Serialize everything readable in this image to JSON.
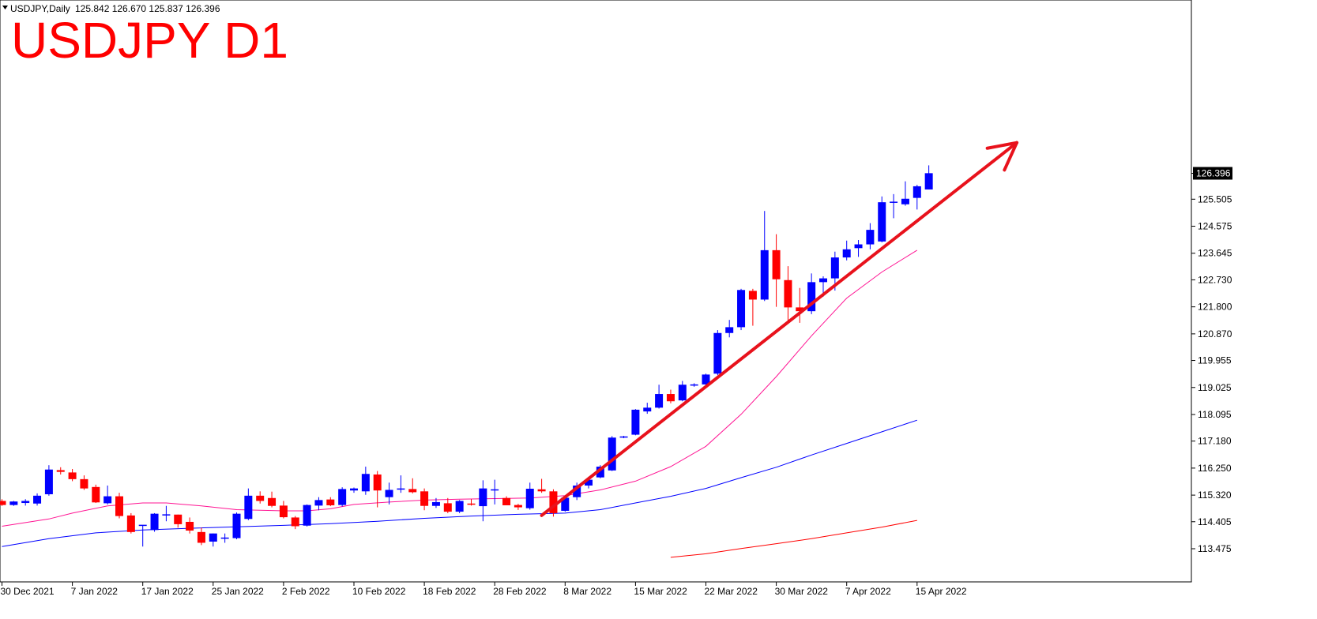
{
  "header": {
    "symbol_text": "USDJPY,Daily",
    "ohlc_text": "125.842 126.670 125.837 126.396"
  },
  "overlay_title": "USDJPY D1",
  "price_label": "126.396",
  "colors": {
    "bull": "#0000ff",
    "bear": "#ff0000",
    "ma_fast": "#ff1493",
    "ma_mid": "#0000ff",
    "ma_slow": "#ff0000",
    "arrow": "#e8121c",
    "title": "#ff0000",
    "axis": "#000000",
    "price_label_bg": "#000000",
    "price_label_fg": "#ffffff"
  },
  "chart_data": {
    "type": "candlestick",
    "instrument": "USDJPY",
    "timeframe": "Daily",
    "y_axis_ticks": [
      113.475,
      114.405,
      115.32,
      116.25,
      117.18,
      118.095,
      119.025,
      119.955,
      120.87,
      121.8,
      122.73,
      123.645,
      124.575,
      125.505,
      126.396
    ],
    "y_axis_labels": [
      "113.475",
      "114.405",
      "115.320",
      "116.250",
      "117.180",
      "118.095",
      "119.025",
      "119.955",
      "120.870",
      "121.800",
      "122.730",
      "123.645",
      "124.575",
      "125.505",
      "126.396"
    ],
    "x_axis_labels": [
      {
        "label": "30 Dec 2021",
        "index": 0
      },
      {
        "label": "7 Jan 2022",
        "index": 6
      },
      {
        "label": "17 Jan 2022",
        "index": 12
      },
      {
        "label": "25 Jan 2022",
        "index": 18
      },
      {
        "label": "2 Feb 2022",
        "index": 24
      },
      {
        "label": "10 Feb 2022",
        "index": 30
      },
      {
        "label": "18 Feb 2022",
        "index": 36
      },
      {
        "label": "28 Feb 2022",
        "index": 42
      },
      {
        "label": "8 Mar 2022",
        "index": 48
      },
      {
        "label": "15 Mar 2022",
        "index": 54
      },
      {
        "label": "22 Mar 2022",
        "index": 60
      },
      {
        "label": "30 Mar 2022",
        "index": 66
      },
      {
        "label": "7 Apr 2022",
        "index": 72
      },
      {
        "label": "15 Apr 2022",
        "index": 78
      }
    ],
    "candles": [
      {
        "o": 115.12,
        "h": 115.18,
        "l": 114.95,
        "c": 114.98
      },
      {
        "o": 114.98,
        "h": 115.12,
        "l": 114.95,
        "c": 115.1
      },
      {
        "o": 115.05,
        "h": 115.18,
        "l": 114.96,
        "c": 115.12
      },
      {
        "o": 115.03,
        "h": 115.38,
        "l": 114.96,
        "c": 115.3
      },
      {
        "o": 115.35,
        "h": 116.35,
        "l": 115.3,
        "c": 116.2
      },
      {
        "o": 116.18,
        "h": 116.28,
        "l": 116.03,
        "c": 116.12
      },
      {
        "o": 116.1,
        "h": 116.22,
        "l": 115.8,
        "c": 115.87
      },
      {
        "o": 115.87,
        "h": 116.0,
        "l": 115.5,
        "c": 115.55
      },
      {
        "o": 115.6,
        "h": 115.68,
        "l": 115.05,
        "c": 115.07
      },
      {
        "o": 115.04,
        "h": 115.65,
        "l": 115.0,
        "c": 115.28
      },
      {
        "o": 115.28,
        "h": 115.4,
        "l": 114.52,
        "c": 114.6
      },
      {
        "o": 114.62,
        "h": 114.7,
        "l": 114.0,
        "c": 114.05
      },
      {
        "o": 114.28,
        "h": 114.28,
        "l": 113.55,
        "c": 114.3
      },
      {
        "o": 114.12,
        "h": 114.7,
        "l": 114.06,
        "c": 114.68
      },
      {
        "o": 114.64,
        "h": 114.95,
        "l": 114.42,
        "c": 114.66
      },
      {
        "o": 114.65,
        "h": 114.65,
        "l": 114.2,
        "c": 114.32
      },
      {
        "o": 114.4,
        "h": 114.55,
        "l": 114.0,
        "c": 114.1
      },
      {
        "o": 114.05,
        "h": 114.2,
        "l": 113.6,
        "c": 113.68
      },
      {
        "o": 113.72,
        "h": 114.0,
        "l": 113.55,
        "c": 114.0
      },
      {
        "o": 113.86,
        "h": 114.0,
        "l": 113.68,
        "c": 113.86
      },
      {
        "o": 113.84,
        "h": 114.72,
        "l": 113.8,
        "c": 114.68
      },
      {
        "o": 114.5,
        "h": 115.55,
        "l": 114.46,
        "c": 115.3
      },
      {
        "o": 115.3,
        "h": 115.45,
        "l": 115.03,
        "c": 115.12
      },
      {
        "o": 115.22,
        "h": 115.44,
        "l": 114.9,
        "c": 114.95
      },
      {
        "o": 114.96,
        "h": 115.12,
        "l": 114.52,
        "c": 114.56
      },
      {
        "o": 114.55,
        "h": 114.6,
        "l": 114.15,
        "c": 114.25
      },
      {
        "o": 114.27,
        "h": 115.0,
        "l": 114.24,
        "c": 114.98
      },
      {
        "o": 114.96,
        "h": 115.25,
        "l": 114.8,
        "c": 115.15
      },
      {
        "o": 115.17,
        "h": 115.25,
        "l": 114.94,
        "c": 114.97
      },
      {
        "o": 114.98,
        "h": 115.59,
        "l": 114.93,
        "c": 115.53
      },
      {
        "o": 115.48,
        "h": 115.58,
        "l": 115.4,
        "c": 115.55
      },
      {
        "o": 115.45,
        "h": 116.3,
        "l": 115.33,
        "c": 116.05
      },
      {
        "o": 116.03,
        "h": 116.15,
        "l": 114.9,
        "c": 115.48
      },
      {
        "o": 115.25,
        "h": 115.75,
        "l": 115.0,
        "c": 115.5
      },
      {
        "o": 115.52,
        "h": 116.0,
        "l": 115.4,
        "c": 115.55
      },
      {
        "o": 115.53,
        "h": 115.9,
        "l": 115.38,
        "c": 115.42
      },
      {
        "o": 115.45,
        "h": 115.55,
        "l": 114.8,
        "c": 114.95
      },
      {
        "o": 114.95,
        "h": 115.22,
        "l": 114.88,
        "c": 115.08
      },
      {
        "o": 115.04,
        "h": 115.22,
        "l": 114.7,
        "c": 114.75
      },
      {
        "o": 114.75,
        "h": 115.15,
        "l": 114.7,
        "c": 115.12
      },
      {
        "o": 115.03,
        "h": 115.18,
        "l": 114.96,
        "c": 114.99
      },
      {
        "o": 114.94,
        "h": 115.83,
        "l": 114.42,
        "c": 115.55
      },
      {
        "o": 115.5,
        "h": 115.85,
        "l": 115.0,
        "c": 115.52
      },
      {
        "o": 115.22,
        "h": 115.28,
        "l": 114.98,
        "c": 114.97
      },
      {
        "o": 114.98,
        "h": 115.02,
        "l": 114.81,
        "c": 114.9
      },
      {
        "o": 114.87,
        "h": 115.75,
        "l": 114.82,
        "c": 115.54
      },
      {
        "o": 115.52,
        "h": 115.88,
        "l": 115.4,
        "c": 115.45
      },
      {
        "o": 115.45,
        "h": 115.52,
        "l": 114.58,
        "c": 114.7
      },
      {
        "o": 114.78,
        "h": 115.3,
        "l": 114.75,
        "c": 115.23
      },
      {
        "o": 115.25,
        "h": 115.75,
        "l": 115.15,
        "c": 115.65
      },
      {
        "o": 115.65,
        "h": 115.95,
        "l": 115.55,
        "c": 115.85
      },
      {
        "o": 115.93,
        "h": 116.35,
        "l": 115.9,
        "c": 116.3
      },
      {
        "o": 116.17,
        "h": 117.35,
        "l": 116.15,
        "c": 117.3
      },
      {
        "o": 117.3,
        "h": 117.36,
        "l": 117.28,
        "c": 117.34
      },
      {
        "o": 117.4,
        "h": 118.28,
        "l": 117.38,
        "c": 118.26
      },
      {
        "o": 118.2,
        "h": 118.5,
        "l": 118.12,
        "c": 118.33
      },
      {
        "o": 118.33,
        "h": 119.12,
        "l": 118.3,
        "c": 118.8
      },
      {
        "o": 118.8,
        "h": 118.95,
        "l": 118.48,
        "c": 118.55
      },
      {
        "o": 118.58,
        "h": 119.25,
        "l": 118.55,
        "c": 119.12
      },
      {
        "o": 119.12,
        "h": 119.17,
        "l": 119.05,
        "c": 119.13
      },
      {
        "o": 119.13,
        "h": 119.5,
        "l": 119.08,
        "c": 119.47
      },
      {
        "o": 119.5,
        "h": 121.0,
        "l": 119.45,
        "c": 120.9
      },
      {
        "o": 120.9,
        "h": 121.35,
        "l": 120.75,
        "c": 121.1
      },
      {
        "o": 121.1,
        "h": 122.42,
        "l": 121.0,
        "c": 122.38
      },
      {
        "o": 122.35,
        "h": 122.42,
        "l": 121.15,
        "c": 122.05
      },
      {
        "o": 122.05,
        "h": 125.1,
        "l": 122.0,
        "c": 123.75
      },
      {
        "o": 123.75,
        "h": 124.3,
        "l": 121.8,
        "c": 122.75
      },
      {
        "o": 122.72,
        "h": 123.2,
        "l": 121.3,
        "c": 121.78
      },
      {
        "o": 121.78,
        "h": 122.45,
        "l": 121.25,
        "c": 121.65
      },
      {
        "o": 121.65,
        "h": 122.95,
        "l": 121.55,
        "c": 122.65
      },
      {
        "o": 122.65,
        "h": 122.85,
        "l": 122.15,
        "c": 122.78
      },
      {
        "o": 122.78,
        "h": 123.7,
        "l": 122.36,
        "c": 123.5
      },
      {
        "o": 123.5,
        "h": 124.08,
        "l": 123.4,
        "c": 123.78
      },
      {
        "o": 123.82,
        "h": 124.1,
        "l": 123.52,
        "c": 123.95
      },
      {
        "o": 123.95,
        "h": 124.68,
        "l": 123.78,
        "c": 124.45
      },
      {
        "o": 124.05,
        "h": 125.6,
        "l": 124.02,
        "c": 125.4
      },
      {
        "o": 125.4,
        "h": 125.68,
        "l": 124.85,
        "c": 125.42
      },
      {
        "o": 125.33,
        "h": 126.12,
        "l": 125.28,
        "c": 125.52
      },
      {
        "o": 125.55,
        "h": 126.0,
        "l": 125.15,
        "c": 125.95
      },
      {
        "o": 125.84,
        "h": 126.67,
        "l": 125.84,
        "c": 126.4
      }
    ],
    "series": [
      {
        "kind": "moving_average",
        "color": "#ff1493",
        "values": [
          [
            0,
            114.25
          ],
          [
            4,
            114.5
          ],
          [
            6,
            114.7
          ],
          [
            9,
            114.95
          ],
          [
            12,
            115.05
          ],
          [
            14,
            115.05
          ],
          [
            17,
            114.95
          ],
          [
            20,
            114.82
          ],
          [
            22,
            114.8
          ],
          [
            24,
            114.78
          ],
          [
            26,
            114.78
          ],
          [
            28,
            114.85
          ],
          [
            30,
            115.0
          ],
          [
            33,
            115.08
          ],
          [
            36,
            115.15
          ],
          [
            39,
            115.18
          ],
          [
            42,
            115.2
          ],
          [
            45,
            115.22
          ],
          [
            48,
            115.3
          ],
          [
            51,
            115.5
          ],
          [
            54,
            115.8
          ],
          [
            57,
            116.3
          ],
          [
            60,
            117.0
          ],
          [
            63,
            118.1
          ],
          [
            66,
            119.4
          ],
          [
            69,
            120.8
          ],
          [
            72,
            122.1
          ],
          [
            75,
            123.0
          ],
          [
            78,
            123.75
          ]
        ]
      },
      {
        "kind": "moving_average",
        "color": "#0000ff",
        "values": [
          [
            0,
            113.55
          ],
          [
            4,
            113.82
          ],
          [
            8,
            114.02
          ],
          [
            12,
            114.12
          ],
          [
            16,
            114.18
          ],
          [
            20,
            114.23
          ],
          [
            24,
            114.28
          ],
          [
            28,
            114.34
          ],
          [
            32,
            114.42
          ],
          [
            36,
            114.52
          ],
          [
            40,
            114.6
          ],
          [
            44,
            114.66
          ],
          [
            48,
            114.7
          ],
          [
            51,
            114.82
          ],
          [
            54,
            115.05
          ],
          [
            57,
            115.28
          ],
          [
            60,
            115.55
          ],
          [
            63,
            115.92
          ],
          [
            66,
            116.28
          ],
          [
            69,
            116.7
          ],
          [
            72,
            117.1
          ],
          [
            75,
            117.5
          ],
          [
            78,
            117.9
          ]
        ]
      },
      {
        "kind": "moving_average",
        "color": "#ff0000",
        "values": [
          [
            57,
            113.18
          ],
          [
            60,
            113.3
          ],
          [
            63,
            113.48
          ],
          [
            66,
            113.65
          ],
          [
            69,
            113.82
          ],
          [
            72,
            114.02
          ],
          [
            75,
            114.22
          ],
          [
            78,
            114.45
          ]
        ]
      }
    ],
    "annotations": [
      {
        "type": "trend_arrow",
        "from": {
          "index": 46,
          "price": 114.62
        },
        "to": {
          "index": 86.5,
          "price": 127.45
        },
        "color": "#e8121c"
      }
    ]
  }
}
